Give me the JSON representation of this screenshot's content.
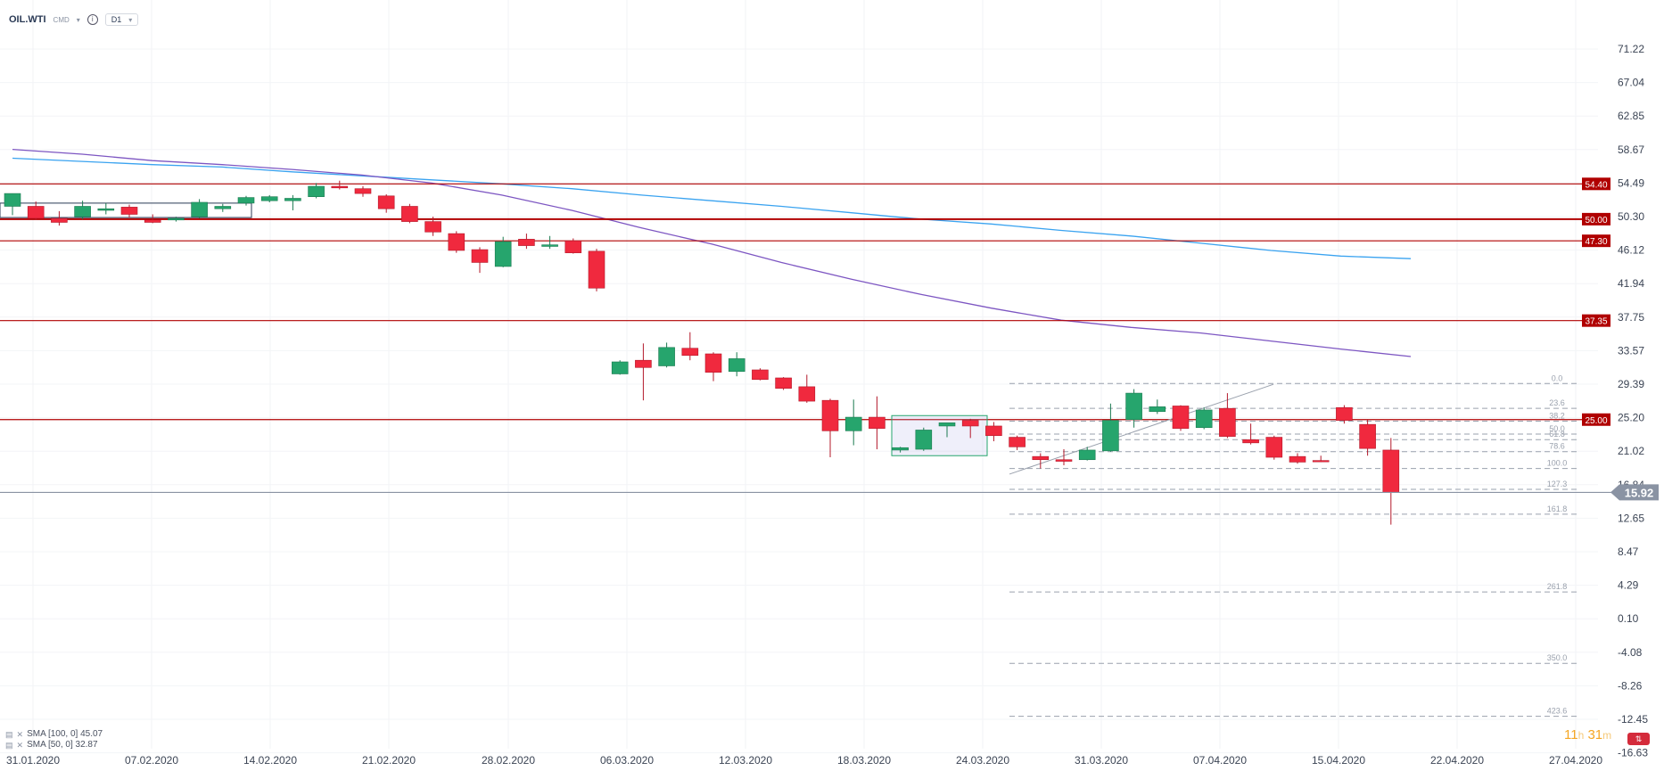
{
  "header": {
    "symbol": "OIL.WTI",
    "market": "CMD",
    "timeframe": "D1"
  },
  "legend": [
    {
      "label": "SMA [100, 0] 45.07"
    },
    {
      "label": "SMA [50, 0] 32.87"
    }
  ],
  "timer": {
    "hours": "11",
    "h_unit": "h",
    "minutes": "31",
    "m_unit": "m"
  },
  "colors": {
    "up": "#26a56d",
    "down": "#f0293e",
    "sma100": "#3aa3f0",
    "sma50": "#7d56c2",
    "level": "#b00000"
  },
  "chart_data": {
    "type": "candlestick",
    "y_ticks": [
      "71.22",
      "67.04",
      "62.85",
      "58.67",
      "54.49",
      "50.30",
      "46.12",
      "41.94",
      "37.75",
      "33.57",
      "29.39",
      "25.20",
      "21.02",
      "16.84",
      "12.65",
      "8.47",
      "4.29",
      "0.10",
      "-4.08",
      "-8.26",
      "-12.45",
      "-16.63"
    ],
    "y_range": [
      -16.63,
      71.22
    ],
    "x_ticks": [
      "31.01.2020",
      "07.02.2020",
      "14.02.2020",
      "21.02.2020",
      "28.02.2020",
      "06.03.2020",
      "12.03.2020",
      "18.03.2020",
      "24.03.2020",
      "31.03.2020",
      "07.04.2020",
      "15.04.2020",
      "22.04.2020",
      "27.04.2020"
    ],
    "current_price": "15.92",
    "levels": [
      "54.40",
      "50.00",
      "47.30",
      "37.35",
      "25.00"
    ],
    "fib_labels": [
      "0.0",
      "23.6",
      "38.2",
      "50.0",
      "61.8",
      "78.6",
      "100.0",
      "127.3",
      "161.8",
      "261.8",
      "350.0",
      "423.6"
    ],
    "fib_values": [
      29.5,
      26.4,
      24.8,
      23.2,
      22.5,
      21.0,
      18.9,
      16.3,
      13.2,
      3.5,
      -5.4,
      -12.0
    ],
    "candles": [
      {
        "d": "31.01",
        "o": 51.6,
        "h": 53.2,
        "l": 50.5,
        "c": 53.2
      },
      {
        "d": "03.02",
        "o": 51.6,
        "h": 52.2,
        "l": 49.9,
        "c": 50.1
      },
      {
        "d": "04.02",
        "o": 50.1,
        "h": 51.0,
        "l": 49.2,
        "c": 49.6
      },
      {
        "d": "05.02",
        "o": 50.3,
        "h": 52.3,
        "l": 50.0,
        "c": 51.6
      },
      {
        "d": "06.02",
        "o": 51.1,
        "h": 52.0,
        "l": 50.6,
        "c": 51.3
      },
      {
        "d": "07.02",
        "o": 51.5,
        "h": 51.8,
        "l": 50.2,
        "c": 50.6
      },
      {
        "d": "10.02",
        "o": 49.9,
        "h": 50.6,
        "l": 49.5,
        "c": 49.6
      },
      {
        "d": "11.02",
        "o": 49.9,
        "h": 50.3,
        "l": 49.7,
        "c": 50.1
      },
      {
        "d": "12.02",
        "o": 50.3,
        "h": 52.5,
        "l": 50.1,
        "c": 52.1
      },
      {
        "d": "13.02",
        "o": 51.3,
        "h": 51.9,
        "l": 50.9,
        "c": 51.6
      },
      {
        "d": "14.02",
        "o": 52.0,
        "h": 52.9,
        "l": 51.7,
        "c": 52.7
      },
      {
        "d": "17.02",
        "o": 52.3,
        "h": 53.0,
        "l": 52.1,
        "c": 52.8
      },
      {
        "d": "18.02",
        "o": 52.3,
        "h": 53.0,
        "l": 51.1,
        "c": 52.6
      },
      {
        "d": "19.02",
        "o": 52.8,
        "h": 54.5,
        "l": 52.6,
        "c": 54.1
      },
      {
        "d": "20.02",
        "o": 54.1,
        "h": 54.8,
        "l": 53.7,
        "c": 53.9
      },
      {
        "d": "21.02",
        "o": 53.8,
        "h": 54.1,
        "l": 52.8,
        "c": 53.2
      },
      {
        "d": "24.02",
        "o": 52.9,
        "h": 53.1,
        "l": 50.8,
        "c": 51.3
      },
      {
        "d": "25.02",
        "o": 51.6,
        "h": 51.9,
        "l": 49.5,
        "c": 49.7
      },
      {
        "d": "26.02",
        "o": 49.7,
        "h": 50.3,
        "l": 47.9,
        "c": 48.4
      },
      {
        "d": "27.02",
        "o": 48.2,
        "h": 48.5,
        "l": 45.8,
        "c": 46.1
      },
      {
        "d": "28.02",
        "o": 46.2,
        "h": 46.5,
        "l": 43.3,
        "c": 44.6
      },
      {
        "d": "02.03",
        "o": 44.1,
        "h": 47.8,
        "l": 44.0,
        "c": 47.2
      },
      {
        "d": "03.03",
        "o": 47.5,
        "h": 48.2,
        "l": 46.3,
        "c": 46.7
      },
      {
        "d": "04.03",
        "o": 46.6,
        "h": 47.9,
        "l": 46.3,
        "c": 46.8
      },
      {
        "d": "05.03",
        "o": 47.3,
        "h": 47.6,
        "l": 45.7,
        "c": 45.8
      },
      {
        "d": "06.03",
        "o": 46.0,
        "h": 46.3,
        "l": 41.0,
        "c": 41.4
      },
      {
        "d": "09.03",
        "o": 30.7,
        "h": 32.4,
        "l": 30.6,
        "c": 32.2
      },
      {
        "d": "10.03",
        "o": 32.4,
        "h": 34.5,
        "l": 27.4,
        "c": 31.5
      },
      {
        "d": "11.03",
        "o": 31.7,
        "h": 34.6,
        "l": 31.5,
        "c": 34.0
      },
      {
        "d": "12.03",
        "o": 33.9,
        "h": 35.9,
        "l": 32.4,
        "c": 33.0
      },
      {
        "d": "13.03",
        "o": 33.2,
        "h": 33.4,
        "l": 29.8,
        "c": 30.9
      },
      {
        "d": "16.03",
        "o": 31.0,
        "h": 33.4,
        "l": 30.4,
        "c": 32.6
      },
      {
        "d": "17.03",
        "o": 31.2,
        "h": 31.4,
        "l": 29.9,
        "c": 30.0
      },
      {
        "d": "18.03",
        "o": 30.2,
        "h": 30.3,
        "l": 28.7,
        "c": 28.9
      },
      {
        "d": "19.03",
        "o": 29.1,
        "h": 30.6,
        "l": 27.1,
        "c": 27.3
      },
      {
        "d": "20.03",
        "o": 27.4,
        "h": 27.6,
        "l": 20.3,
        "c": 23.6
      },
      {
        "d": "23.03",
        "o": 23.6,
        "h": 27.5,
        "l": 21.8,
        "c": 25.3
      },
      {
        "d": "24.03",
        "o": 25.3,
        "h": 27.9,
        "l": 21.3,
        "c": 23.9
      },
      {
        "d": "25.03",
        "o": 21.2,
        "h": 21.6,
        "l": 20.9,
        "c": 21.5
      },
      {
        "d": "26.03",
        "o": 21.3,
        "h": 24.0,
        "l": 21.1,
        "c": 23.7
      },
      {
        "d": "27.03",
        "o": 24.2,
        "h": 24.6,
        "l": 22.8,
        "c": 24.6
      },
      {
        "d": "30.03",
        "o": 24.9,
        "h": 25.1,
        "l": 22.7,
        "c": 24.2
      },
      {
        "d": "31.03",
        "o": 24.2,
        "h": 24.7,
        "l": 22.3,
        "c": 23.0
      },
      {
        "d": "01.04",
        "o": 22.8,
        "h": 23.0,
        "l": 21.2,
        "c": 21.6
      },
      {
        "d": "02.04",
        "o": 20.4,
        "h": 20.8,
        "l": 18.9,
        "c": 20.0
      },
      {
        "d": "03.04",
        "o": 20.0,
        "h": 21.3,
        "l": 19.3,
        "c": 19.8
      },
      {
        "d": "06.04",
        "o": 20.0,
        "h": 21.6,
        "l": 19.9,
        "c": 21.2
      },
      {
        "d": "07.04",
        "o": 21.1,
        "h": 27.0,
        "l": 21.0,
        "c": 24.9
      },
      {
        "d": "08.04",
        "o": 25.0,
        "h": 28.8,
        "l": 24.0,
        "c": 28.3
      },
      {
        "d": "09.04",
        "o": 26.0,
        "h": 27.5,
        "l": 25.7,
        "c": 26.6
      },
      {
        "d": "13.04",
        "o": 26.7,
        "h": 26.8,
        "l": 23.6,
        "c": 23.9
      },
      {
        "d": "14.04",
        "o": 24.0,
        "h": 26.5,
        "l": 23.8,
        "c": 26.2
      },
      {
        "d": "15.04",
        "o": 26.4,
        "h": 28.3,
        "l": 22.7,
        "c": 22.9
      },
      {
        "d": "16.04",
        "o": 22.5,
        "h": 24.5,
        "l": 21.9,
        "c": 22.1
      },
      {
        "d": "17.04",
        "o": 22.8,
        "h": 23.0,
        "l": 20.0,
        "c": 20.3
      },
      {
        "d": "20.04",
        "o": 20.4,
        "h": 20.8,
        "l": 19.5,
        "c": 19.7
      },
      {
        "d": "21.04",
        "o": 19.9,
        "h": 20.5,
        "l": 19.7,
        "c": 19.8
      },
      {
        "d": "22.04",
        "o": 26.5,
        "h": 26.8,
        "l": 24.5,
        "c": 24.9
      },
      {
        "d": "23.04",
        "o": 24.4,
        "h": 25.0,
        "l": 20.5,
        "c": 21.4
      },
      {
        "d": "24.04",
        "o": 21.2,
        "h": 22.7,
        "l": 11.9,
        "c": 15.9
      }
    ],
    "sma100": [
      57.6,
      57.2,
      56.8,
      56.5,
      55.9,
      55.4,
      54.9,
      54.4,
      53.8,
      53.0,
      52.3,
      51.6,
      50.8,
      50.0,
      49.4,
      48.6,
      47.9,
      47.0,
      46.1,
      45.4,
      45.07
    ],
    "sma50": [
      58.7,
      58.1,
      57.3,
      56.8,
      56.2,
      55.5,
      54.5,
      53.0,
      51.1,
      48.9,
      46.9,
      44.6,
      42.5,
      40.6,
      38.9,
      37.4,
      36.5,
      35.8,
      34.8,
      33.8,
      32.87
    ]
  }
}
